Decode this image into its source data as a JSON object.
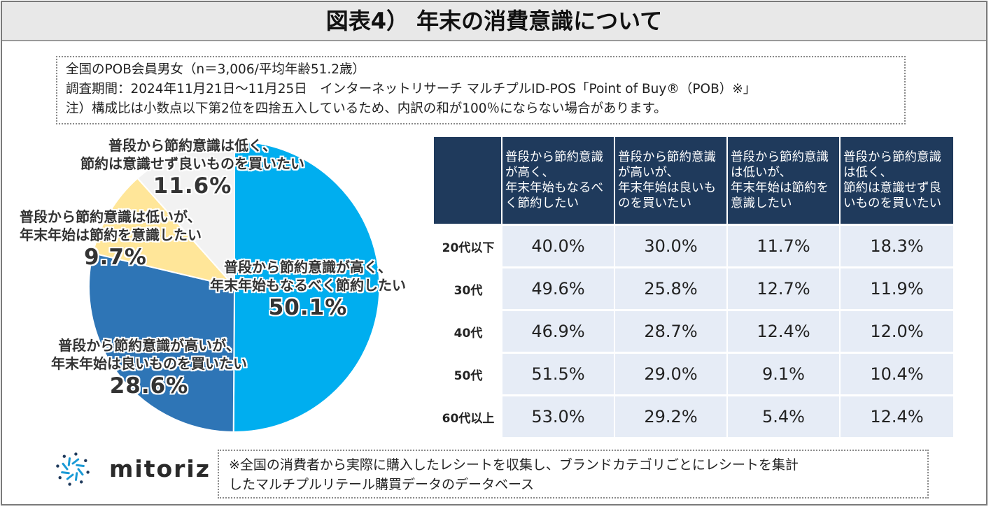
{
  "title": "図表4） 年末の消費意識について",
  "notes": [
    "全国のPOB会員男女（n＝3,006/平均年齢51.2歳）",
    "調査期間：2024年11月21日～11月25日　インターネットリサーチ マルチプルID-POS「Point of Buy®（POB）※」",
    "注）構成比は小数点以下第2位を四捨五入しているため、内訳の和が100％にならない場合があります。"
  ],
  "chart_data": {
    "type": "pie",
    "slices": [
      {
        "name_lines": [
          "普段から節約意識が高く、",
          "年末年始もなるべく節約したい"
        ],
        "label": "50.1%",
        "value": 50.1,
        "color": "#00aeef"
      },
      {
        "name_lines": [
          "普段から節約意識が高いが、",
          "年末年始は良いものを買いたい"
        ],
        "label": "28.6%",
        "value": 28.6,
        "color": "#2e75b6"
      },
      {
        "name_lines": [
          "普段から節約意識は低いが、",
          "年末年始は節約を意識したい"
        ],
        "label": "9.7%",
        "value": 9.7,
        "color": "#ffe699"
      },
      {
        "name_lines": [
          "普段から節約意識は低く、",
          "節約は意識せず良いものを買いたい"
        ],
        "label": "11.6%",
        "value": 11.6,
        "color": "#f2f2f2"
      }
    ]
  },
  "table": {
    "columns": [
      [
        "普段から節約意識",
        "が高く、",
        "年末年始もなるべ",
        "く節約したい"
      ],
      [
        "普段から節約意識",
        "が高いが、",
        "年末年始は良いも",
        "のを買いたい"
      ],
      [
        "普段から節約意識",
        "は低いが、",
        "年末年始は節約を",
        "意識したい"
      ],
      [
        "普段から節約意識",
        "は低く、",
        "節約は意識せず良",
        "いものを買いたい"
      ]
    ],
    "rows": [
      {
        "label": "20代以下",
        "values": [
          "40.0%",
          "30.0%",
          "11.7%",
          "18.3%"
        ]
      },
      {
        "label": "30代",
        "values": [
          "49.6%",
          "25.8%",
          "12.7%",
          "11.9%"
        ]
      },
      {
        "label": "40代",
        "values": [
          "46.9%",
          "28.7%",
          "12.4%",
          "12.0%"
        ]
      },
      {
        "label": "50代",
        "values": [
          "51.5%",
          "29.0%",
          "9.1%",
          "10.4%"
        ]
      },
      {
        "label": "60代以上",
        "values": [
          "53.0%",
          "29.2%",
          "5.4%",
          "12.4%"
        ]
      }
    ]
  },
  "logo": {
    "text": "mitoriz",
    "icon": "sun-burst-icon",
    "accent": "#1a9ad6"
  },
  "footnote": [
    "※全国の消費者から実際に購入したレシートを収集し、ブランドカテゴリごとにレシートを集計",
    "したマルチプルリテール購買データのデータベース"
  ]
}
